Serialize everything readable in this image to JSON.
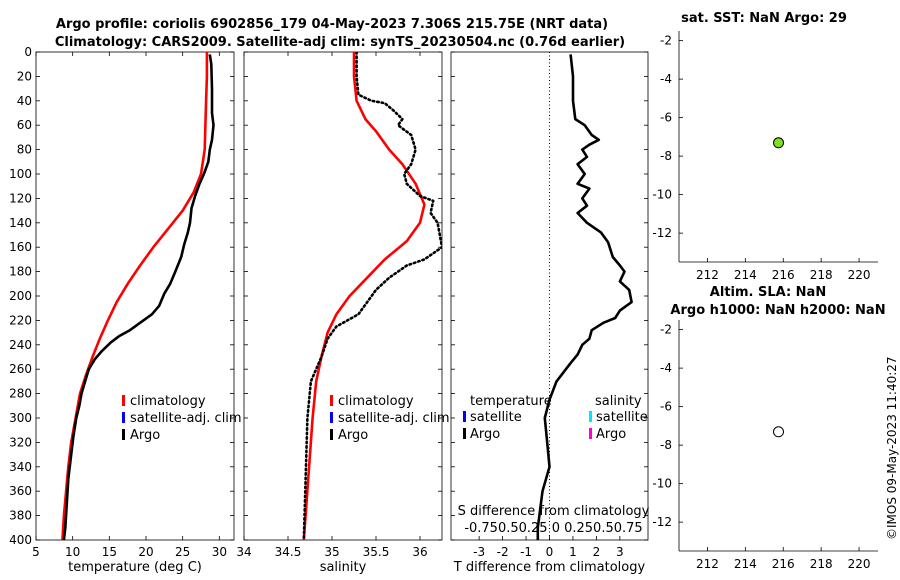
{
  "header": {
    "title_line1": "Argo profile: coriolis 6902856_179 04-May-2023 7.306S 215.75E (NRT data)",
    "title_line2": "Climatology: CARS2009. Satellite-adj clim: synTS_20230504.nc (0.76d earlier)"
  },
  "watermark": "©IMOS 09-May-2023 11:40:27",
  "colors": {
    "climatology": "#ff0000",
    "satellite_adj": "#0000ff",
    "argo": "#000000",
    "satellite_s": "#00e5ff",
    "argo_s": "#ff00cc",
    "sst_marker": "#7fe020"
  },
  "chart_data": [
    {
      "id": "temperature",
      "type": "line",
      "title": "",
      "xlabel": "temperature (deg C)",
      "ylabel": "",
      "xlim": [
        5,
        32
      ],
      "ylim": [
        400,
        0
      ],
      "xticks": [
        "5",
        "10",
        "15",
        "20",
        "25",
        "30"
      ],
      "yticks": [
        "0",
        "20",
        "40",
        "60",
        "80",
        "100",
        "120",
        "140",
        "160",
        "180",
        "200",
        "220",
        "240",
        "260",
        "280",
        "300",
        "320",
        "340",
        "360",
        "380",
        "400"
      ],
      "legend": [
        "climatology",
        "satellite-adj. clim",
        "Argo"
      ],
      "series": [
        {
          "name": "climatology",
          "color": "#ff0000",
          "style": "solid",
          "points": [
            [
              28.3,
              0
            ],
            [
              28.3,
              20
            ],
            [
              28.2,
              40
            ],
            [
              28.1,
              60
            ],
            [
              28.0,
              80
            ],
            [
              27.5,
              100
            ],
            [
              26.5,
              115
            ],
            [
              25.0,
              130
            ],
            [
              23.0,
              145
            ],
            [
              21.0,
              160
            ],
            [
              19.2,
              175
            ],
            [
              17.5,
              190
            ],
            [
              16.0,
              205
            ],
            [
              14.8,
              220
            ],
            [
              13.7,
              235
            ],
            [
              12.7,
              250
            ],
            [
              11.8,
              265
            ],
            [
              11.0,
              280
            ],
            [
              10.4,
              300
            ],
            [
              9.8,
              320
            ],
            [
              9.4,
              340
            ],
            [
              9.1,
              360
            ],
            [
              8.8,
              380
            ],
            [
              8.6,
              400
            ]
          ]
        },
        {
          "name": "Argo",
          "color": "#000000",
          "style": "solid",
          "points": [
            [
              28.7,
              2
            ],
            [
              28.9,
              10
            ],
            [
              29.0,
              30
            ],
            [
              29.0,
              50
            ],
            [
              29.2,
              60
            ],
            [
              29.0,
              72
            ],
            [
              28.7,
              80
            ],
            [
              28.5,
              90
            ],
            [
              27.9,
              100
            ],
            [
              27.3,
              108
            ],
            [
              26.7,
              118
            ],
            [
              26.2,
              128
            ],
            [
              26.0,
              140
            ],
            [
              25.7,
              148
            ],
            [
              25.2,
              158
            ],
            [
              24.8,
              168
            ],
            [
              24.0,
              180
            ],
            [
              23.3,
              190
            ],
            [
              22.5,
              198
            ],
            [
              21.8,
              208
            ],
            [
              20.8,
              215
            ],
            [
              19.2,
              222
            ],
            [
              17.8,
              228
            ],
            [
              16.3,
              233
            ],
            [
              15.2,
              238
            ],
            [
              14.0,
              245
            ],
            [
              13.0,
              252
            ],
            [
              12.2,
              260
            ],
            [
              11.7,
              270
            ],
            [
              11.2,
              280
            ],
            [
              10.9,
              290
            ],
            [
              10.5,
              300
            ],
            [
              10.1,
              315
            ],
            [
              9.8,
              330
            ],
            [
              9.4,
              350
            ],
            [
              9.2,
              370
            ],
            [
              9.0,
              390
            ],
            [
              8.8,
              400
            ]
          ]
        }
      ]
    },
    {
      "id": "salinity",
      "type": "line",
      "title": "",
      "xlabel": "salinity",
      "ylabel": "",
      "xlim": [
        34,
        36.25
      ],
      "ylim": [
        400,
        0
      ],
      "xticks": [
        "34",
        "34.5",
        "35",
        "35.5",
        "36"
      ],
      "legend": [
        "climatology",
        "satellite-adj. clim",
        "Argo"
      ],
      "series": [
        {
          "name": "climatology",
          "color": "#ff0000",
          "style": "solid",
          "points": [
            [
              35.25,
              0
            ],
            [
              35.25,
              20
            ],
            [
              35.28,
              40
            ],
            [
              35.38,
              55
            ],
            [
              35.5,
              65
            ],
            [
              35.65,
              80
            ],
            [
              35.8,
              92
            ],
            [
              35.95,
              108
            ],
            [
              36.05,
              125
            ],
            [
              36.0,
              140
            ],
            [
              35.85,
              155
            ],
            [
              35.6,
              170
            ],
            [
              35.4,
              185
            ],
            [
              35.2,
              200
            ],
            [
              35.05,
              215
            ],
            [
              34.95,
              230
            ],
            [
              34.88,
              250
            ],
            [
              34.82,
              270
            ],
            [
              34.78,
              300
            ],
            [
              34.74,
              340
            ],
            [
              34.7,
              380
            ],
            [
              34.68,
              400
            ]
          ]
        },
        {
          "name": "Argo",
          "color": "#000000",
          "style": "dotted",
          "points": [
            [
              35.28,
              0
            ],
            [
              35.28,
              20
            ],
            [
              35.3,
              35
            ],
            [
              35.45,
              40
            ],
            [
              35.6,
              42
            ],
            [
              35.7,
              48
            ],
            [
              35.8,
              55
            ],
            [
              35.75,
              60
            ],
            [
              35.9,
              68
            ],
            [
              35.95,
              80
            ],
            [
              35.9,
              92
            ],
            [
              35.82,
              100
            ],
            [
              35.85,
              108
            ],
            [
              36.0,
              118
            ],
            [
              36.15,
              122
            ],
            [
              36.12,
              132
            ],
            [
              36.2,
              140
            ],
            [
              36.25,
              160
            ],
            [
              36.05,
              170
            ],
            [
              35.85,
              175
            ],
            [
              35.65,
              185
            ],
            [
              35.5,
              195
            ],
            [
              35.4,
              205
            ],
            [
              35.3,
              215
            ],
            [
              35.05,
              225
            ],
            [
              34.95,
              235
            ],
            [
              34.88,
              250
            ],
            [
              34.76,
              270
            ],
            [
              34.72,
              300
            ],
            [
              34.7,
              350
            ],
            [
              34.68,
              400
            ]
          ]
        }
      ]
    },
    {
      "id": "difference",
      "type": "line",
      "title": "",
      "xlabel": "T difference from climatology",
      "xlabel_top": "S difference from climatology",
      "ylabel": "",
      "xlim": [
        -4.2,
        4.2
      ],
      "ylim": [
        400,
        0
      ],
      "xticks": [
        "-3",
        "-2",
        "-1",
        "0",
        "1",
        "2",
        "3"
      ],
      "sticks": [
        "-0.75",
        "0.5",
        "0.25",
        "0",
        "0.25",
        "0.5",
        "0.75"
      ],
      "sticks_text": "-0.750.50.25 0 0.250.50.75",
      "legend_temperature": {
        "heading": "temperature",
        "items": [
          "satellite",
          "Argo"
        ]
      },
      "legend_salinity": {
        "heading": "salinity",
        "items": [
          "satellite",
          "Argo"
        ]
      },
      "series": [
        {
          "name": "T difference (Argo)",
          "color": "#000000",
          "style": "solid",
          "points": [
            [
              0.9,
              2
            ],
            [
              1.0,
              20
            ],
            [
              1.0,
              40
            ],
            [
              1.1,
              55
            ],
            [
              1.5,
              60
            ],
            [
              1.8,
              68
            ],
            [
              2.1,
              72
            ],
            [
              1.7,
              76
            ],
            [
              1.4,
              80
            ],
            [
              1.6,
              86
            ],
            [
              1.2,
              92
            ],
            [
              1.5,
              100
            ],
            [
              1.2,
              108
            ],
            [
              1.7,
              112
            ],
            [
              1.4,
              120
            ],
            [
              1.6,
              126
            ],
            [
              1.2,
              132
            ],
            [
              1.6,
              140
            ],
            [
              2.2,
              148
            ],
            [
              2.5,
              156
            ],
            [
              2.7,
              168
            ],
            [
              3.0,
              175
            ],
            [
              3.2,
              180
            ],
            [
              3.0,
              188
            ],
            [
              3.4,
              195
            ],
            [
              3.5,
              205
            ],
            [
              3.0,
              212
            ],
            [
              2.8,
              218
            ],
            [
              2.3,
              222
            ],
            [
              1.8,
              228
            ],
            [
              1.7,
              235
            ],
            [
              1.4,
              240
            ],
            [
              1.2,
              248
            ],
            [
              0.9,
              255
            ],
            [
              0.5,
              265
            ],
            [
              0.3,
              270
            ],
            [
              0.0,
              285
            ],
            [
              -0.2,
              300
            ],
            [
              -0.1,
              320
            ],
            [
              0.0,
              340
            ],
            [
              -0.3,
              360
            ],
            [
              -0.5,
              390
            ],
            [
              -0.5,
              400
            ]
          ]
        }
      ]
    },
    {
      "id": "sst_map",
      "type": "scatter",
      "title": "sat. SST: NaN Argo: 29",
      "xlabel": "",
      "ylabel": "",
      "xlim": [
        210.5,
        221
      ],
      "ylim": [
        -13.5,
        -1.5
      ],
      "xticks": [
        "212",
        "214",
        "216",
        "218",
        "220"
      ],
      "yticks": [
        "-2",
        "-4",
        "-6",
        "-8",
        "-10",
        "-12"
      ],
      "points": [
        [
          215.75,
          -7.306
        ]
      ]
    },
    {
      "id": "sla_map",
      "type": "scatter",
      "title": "Altim. SLA: NaN",
      "subtitle": "Argo h1000: NaN h2000: NaN",
      "xlabel": "",
      "ylabel": "",
      "xlim": [
        210.5,
        221
      ],
      "ylim": [
        -13.5,
        -1.5
      ],
      "xticks": [
        "212",
        "214",
        "216",
        "218",
        "220"
      ],
      "yticks": [
        "-2",
        "-4",
        "-6",
        "-8",
        "-10",
        "-12"
      ],
      "points": [
        [
          215.75,
          -7.306
        ]
      ]
    }
  ]
}
